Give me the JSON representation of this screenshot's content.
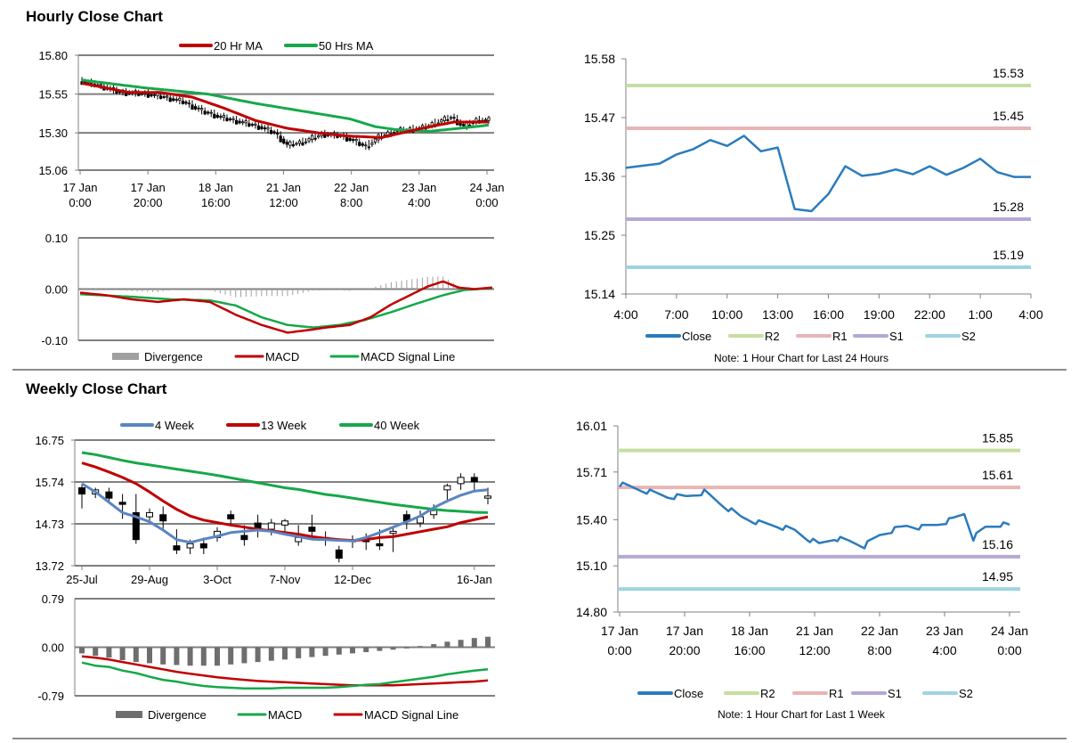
{
  "sections": [
    {
      "title": "Hourly Close Chart"
    },
    {
      "title": "Weekly Close Chart"
    }
  ],
  "colors": {
    "ma20": "#c00000",
    "ma50": "#16a84a",
    "w4": "#5b85c1",
    "w13": "#c00000",
    "w40": "#16a84a",
    "close": "#2b7bbd",
    "r2": "#c6dea0",
    "r1": "#e8b4b4",
    "s1": "#b5a8d4",
    "s2": "#9fd3e2",
    "divergence_hourly": "#a0a0a0",
    "divergence_weekly": "#6e6e6e",
    "macd_hourly": "#c00000",
    "signal_hourly": "#16a84a",
    "macd_weekly": "#16a84a",
    "signal_weekly": "#c00000",
    "candle": "#000000",
    "grid": "#808080"
  },
  "chart_data": [
    {
      "id": "hourly_candles",
      "type": "candlestick",
      "legend": [
        "20 Hr MA",
        "50 Hrs MA"
      ],
      "yticks": [
        "15.80",
        "15.55",
        "15.30",
        "15.06"
      ],
      "ylim": [
        15.06,
        15.8
      ],
      "xticks": [
        [
          "17 Jan",
          "0:00"
        ],
        [
          "17 Jan",
          "20:00"
        ],
        [
          "18 Jan",
          "16:00"
        ],
        [
          "21 Jan",
          "12:00"
        ],
        [
          "22 Jan",
          "8:00"
        ],
        [
          "23 Jan",
          "4:00"
        ],
        [
          "24 Jan",
          "0:00"
        ]
      ],
      "n": 130,
      "close_anchors": [
        [
          0,
          15.63
        ],
        [
          6,
          15.6
        ],
        [
          12,
          15.56
        ],
        [
          20,
          15.55
        ],
        [
          26,
          15.53
        ],
        [
          32,
          15.5
        ],
        [
          38,
          15.44
        ],
        [
          44,
          15.4
        ],
        [
          50,
          15.37
        ],
        [
          56,
          15.34
        ],
        [
          61,
          15.3
        ],
        [
          65,
          15.22
        ],
        [
          70,
          15.24
        ],
        [
          76,
          15.29
        ],
        [
          82,
          15.28
        ],
        [
          86,
          15.25
        ],
        [
          90,
          15.21
        ],
        [
          94,
          15.27
        ],
        [
          99,
          15.31
        ],
        [
          104,
          15.32
        ],
        [
          108,
          15.33
        ],
        [
          113,
          15.37
        ],
        [
          117,
          15.4
        ],
        [
          121,
          15.34
        ],
        [
          125,
          15.38
        ],
        [
          129,
          15.38
        ]
      ],
      "ma20_anchors": [
        [
          0,
          15.62
        ],
        [
          15,
          15.56
        ],
        [
          25,
          15.56
        ],
        [
          35,
          15.53
        ],
        [
          45,
          15.46
        ],
        [
          55,
          15.38
        ],
        [
          65,
          15.33
        ],
        [
          75,
          15.3
        ],
        [
          84,
          15.28
        ],
        [
          95,
          15.27
        ],
        [
          108,
          15.33
        ],
        [
          118,
          15.37
        ],
        [
          129,
          15.37
        ]
      ],
      "ma50_anchors": [
        [
          0,
          15.64
        ],
        [
          20,
          15.59
        ],
        [
          40,
          15.55
        ],
        [
          55,
          15.49
        ],
        [
          70,
          15.44
        ],
        [
          85,
          15.39
        ],
        [
          93,
          15.34
        ],
        [
          100,
          15.32
        ],
        [
          110,
          15.31
        ],
        [
          120,
          15.33
        ],
        [
          129,
          15.35
        ]
      ]
    },
    {
      "id": "hourly_macd",
      "type": "bar+line",
      "legend": [
        "Divergence",
        "MACD",
        "MACD Signal Line"
      ],
      "yticks": [
        "0.10",
        "0.00",
        "-0.10"
      ],
      "ylim": [
        -0.1,
        0.1
      ],
      "n": 130,
      "macd_anchors": [
        [
          0,
          -0.007
        ],
        [
          10,
          -0.012
        ],
        [
          20,
          -0.02
        ],
        [
          30,
          -0.025
        ],
        [
          40,
          -0.02
        ],
        [
          50,
          -0.025
        ],
        [
          60,
          -0.05
        ],
        [
          70,
          -0.07
        ],
        [
          80,
          -0.085
        ],
        [
          88,
          -0.08
        ],
        [
          95,
          -0.075
        ],
        [
          104,
          -0.07
        ],
        [
          112,
          -0.055
        ],
        [
          120,
          -0.03
        ],
        [
          128,
          -0.01
        ],
        [
          134,
          0.005
        ],
        [
          140,
          0.015
        ],
        [
          146,
          0.003
        ],
        [
          152,
          0.0
        ],
        [
          159,
          0.003
        ]
      ],
      "signal_anchors": [
        [
          0,
          -0.01
        ],
        [
          20,
          -0.015
        ],
        [
          35,
          -0.02
        ],
        [
          50,
          -0.022
        ],
        [
          60,
          -0.032
        ],
        [
          70,
          -0.055
        ],
        [
          80,
          -0.07
        ],
        [
          90,
          -0.075
        ],
        [
          100,
          -0.07
        ],
        [
          110,
          -0.06
        ],
        [
          120,
          -0.045
        ],
        [
          130,
          -0.028
        ],
        [
          140,
          -0.012
        ],
        [
          148,
          -0.002
        ],
        [
          159,
          0.002
        ]
      ],
      "n_points": 160
    },
    {
      "id": "hourly_close_24h",
      "type": "line",
      "legend": [
        "Close",
        "R2",
        "R1",
        "S1",
        "S2"
      ],
      "yticks": [
        "15.58",
        "15.47",
        "15.36",
        "15.25",
        "15.14"
      ],
      "ylim": [
        15.14,
        15.58
      ],
      "xticks": [
        "4:00",
        "7:00",
        "10:00",
        "13:00",
        "16:00",
        "19:00",
        "22:00",
        "1:00",
        "4:00"
      ],
      "values": [
        15.376,
        15.38,
        15.384,
        15.401,
        15.411,
        15.428,
        15.417,
        15.436,
        15.407,
        15.414,
        15.299,
        15.295,
        15.327,
        15.379,
        15.361,
        15.365,
        15.373,
        15.364,
        15.379,
        15.363,
        15.376,
        15.393,
        15.368,
        15.359,
        15.359
      ],
      "levels": {
        "R2": 15.53,
        "R1": 15.45,
        "S1": 15.28,
        "S2": 15.19
      },
      "level_labels": {
        "R2": "15.53",
        "R1": "15.45",
        "S1": "15.28",
        "S2": "15.19"
      },
      "note": "Note: 1 Hour Chart for Last 24 Hours"
    },
    {
      "id": "weekly_candles",
      "type": "candlestick",
      "legend": [
        "4 Week",
        "13 Week",
        "40 Week"
      ],
      "yticks": [
        "16.75",
        "15.74",
        "14.73",
        "13.72"
      ],
      "ylim": [
        13.72,
        16.75
      ],
      "xticks": [
        "25-Jul",
        "29-Aug",
        "3-Oct",
        "7-Nov",
        "12-Dec",
        "16-Jan"
      ],
      "candles": [
        [
          15.6,
          15.45,
          15.7,
          15.1
        ],
        [
          15.45,
          15.55,
          15.6,
          15.35
        ],
        [
          15.5,
          15.35,
          15.6,
          15.25
        ],
        [
          15.25,
          15.2,
          15.45,
          14.85
        ],
        [
          15.0,
          14.35,
          15.45,
          14.25
        ],
        [
          14.9,
          15.0,
          15.1,
          14.75
        ],
        [
          14.95,
          14.8,
          15.15,
          14.55
        ],
        [
          14.2,
          14.1,
          14.6,
          14.0
        ],
        [
          14.15,
          14.25,
          14.35,
          14.0
        ],
        [
          14.25,
          14.15,
          14.4,
          14.0
        ],
        [
          14.4,
          14.55,
          14.65,
          14.3
        ],
        [
          14.95,
          14.85,
          15.05,
          14.7
        ],
        [
          14.45,
          14.35,
          14.7,
          14.2
        ],
        [
          14.75,
          14.6,
          14.95,
          14.4
        ],
        [
          14.6,
          14.75,
          14.85,
          14.45
        ],
        [
          14.7,
          14.8,
          14.85,
          14.55
        ],
        [
          14.3,
          14.4,
          14.7,
          14.2
        ],
        [
          14.65,
          14.55,
          14.95,
          14.45
        ],
        [
          14.35,
          14.4,
          14.55,
          14.2
        ],
        [
          14.1,
          13.9,
          14.2,
          13.8
        ],
        [
          14.3,
          14.35,
          14.45,
          14.15
        ],
        [
          14.4,
          14.3,
          14.5,
          14.1
        ],
        [
          14.25,
          14.2,
          14.6,
          14.1
        ],
        [
          14.5,
          14.55,
          14.65,
          14.05
        ],
        [
          14.95,
          14.8,
          15.05,
          14.6
        ],
        [
          14.75,
          14.9,
          15.05,
          14.65
        ],
        [
          14.95,
          15.05,
          15.2,
          14.85
        ],
        [
          15.55,
          15.65,
          15.7,
          15.3
        ],
        [
          15.7,
          15.85,
          15.95,
          15.55
        ],
        [
          15.85,
          15.75,
          15.95,
          15.55
        ],
        [
          15.35,
          15.4,
          15.6,
          15.2
        ]
      ],
      "w4": [
        15.7,
        15.5,
        15.25,
        15.0,
        14.9,
        14.78,
        14.58,
        14.35,
        14.28,
        14.36,
        14.43,
        14.52,
        14.55,
        14.58,
        14.55,
        14.48,
        14.42,
        14.36,
        14.35,
        14.33,
        14.32,
        14.4,
        14.52,
        14.65,
        14.78,
        14.92,
        15.12,
        15.28,
        15.42,
        15.52,
        15.55
      ],
      "w13": [
        16.2,
        16.1,
        15.98,
        15.85,
        15.7,
        15.5,
        15.28,
        15.08,
        14.92,
        14.82,
        14.76,
        14.7,
        14.65,
        14.6,
        14.56,
        14.52,
        14.48,
        14.42,
        14.38,
        14.35,
        14.33,
        14.35,
        14.4,
        14.42,
        14.48,
        14.54,
        14.6,
        14.66,
        14.76,
        14.83,
        14.9
      ],
      "w40": [
        16.45,
        16.4,
        16.33,
        16.26,
        16.2,
        16.15,
        16.1,
        16.05,
        16.0,
        15.95,
        15.9,
        15.84,
        15.78,
        15.72,
        15.66,
        15.6,
        15.56,
        15.5,
        15.44,
        15.4,
        15.35,
        15.3,
        15.25,
        15.2,
        15.16,
        15.12,
        15.08,
        15.05,
        15.03,
        15.01,
        15.0
      ]
    },
    {
      "id": "weekly_macd",
      "type": "bar+line",
      "legend": [
        "Divergence",
        "MACD",
        "MACD Signal Line"
      ],
      "yticks": [
        "0.79",
        "0.00",
        "-0.79"
      ],
      "ylim": [
        -0.79,
        0.79
      ],
      "divergence": [
        -0.1,
        -0.14,
        -0.17,
        -0.21,
        -0.24,
        -0.26,
        -0.28,
        -0.29,
        -0.3,
        -0.3,
        -0.3,
        -0.28,
        -0.26,
        -0.24,
        -0.22,
        -0.2,
        -0.18,
        -0.16,
        -0.14,
        -0.12,
        -0.1,
        -0.08,
        -0.06,
        -0.04,
        -0.02,
        0.02,
        0.05,
        0.09,
        0.12,
        0.15,
        0.17
      ],
      "macd": [
        -0.25,
        -0.3,
        -0.32,
        -0.38,
        -0.42,
        -0.48,
        -0.53,
        -0.56,
        -0.6,
        -0.63,
        -0.65,
        -0.66,
        -0.67,
        -0.67,
        -0.67,
        -0.66,
        -0.66,
        -0.66,
        -0.66,
        -0.65,
        -0.63,
        -0.61,
        -0.6,
        -0.57,
        -0.54,
        -0.51,
        -0.48,
        -0.44,
        -0.41,
        -0.38,
        -0.36
      ],
      "signal": [
        -0.15,
        -0.17,
        -0.2,
        -0.24,
        -0.28,
        -0.32,
        -0.36,
        -0.4,
        -0.43,
        -0.46,
        -0.49,
        -0.51,
        -0.53,
        -0.55,
        -0.56,
        -0.57,
        -0.58,
        -0.59,
        -0.6,
        -0.61,
        -0.62,
        -0.62,
        -0.62,
        -0.62,
        -0.61,
        -0.6,
        -0.59,
        -0.58,
        -0.57,
        -0.56,
        -0.54
      ]
    },
    {
      "id": "weekly_close_1w",
      "type": "line",
      "legend": [
        "Close",
        "R2",
        "R1",
        "S1",
        "S2"
      ],
      "yticks": [
        "16.01",
        "15.71",
        "15.40",
        "15.10",
        "14.80"
      ],
      "ylim": [
        14.8,
        16.01
      ],
      "xticks": [
        [
          "17 Jan",
          "0:00"
        ],
        [
          "17 Jan",
          "20:00"
        ],
        [
          "18 Jan",
          "16:00"
        ],
        [
          "21 Jan",
          "12:00"
        ],
        [
          "22 Jan",
          "8:00"
        ],
        [
          "23 Jan",
          "4:00"
        ],
        [
          "24 Jan",
          "0:00"
        ]
      ],
      "anchors": [
        [
          0,
          15.63
        ],
        [
          6,
          15.6
        ],
        [
          12,
          15.57
        ],
        [
          16,
          15.55
        ],
        [
          22,
          15.55
        ],
        [
          28,
          15.58
        ],
        [
          33,
          15.51
        ],
        [
          40,
          15.42
        ],
        [
          46,
          15.38
        ],
        [
          52,
          15.36
        ],
        [
          58,
          15.33
        ],
        [
          62,
          15.28
        ],
        [
          66,
          15.24
        ],
        [
          71,
          15.28
        ],
        [
          76,
          15.26
        ],
        [
          81,
          15.23
        ],
        [
          86,
          15.3
        ],
        [
          90,
          15.33
        ],
        [
          95,
          15.36
        ],
        [
          100,
          15.35
        ],
        [
          105,
          15.37
        ],
        [
          110,
          15.4
        ],
        [
          114,
          15.44
        ],
        [
          117,
          15.28
        ],
        [
          121,
          15.35
        ],
        [
          126,
          15.37
        ],
        [
          129,
          15.36
        ]
      ],
      "n": 130,
      "levels": {
        "R2": 15.85,
        "R1": 15.61,
        "S1": 15.16,
        "S2": 14.95
      },
      "level_labels": {
        "R2": "15.85",
        "R1": "15.61",
        "S1": "15.16",
        "S2": "14.95"
      },
      "note": "Note: 1 Hour Chart for Last 1 Week"
    }
  ]
}
